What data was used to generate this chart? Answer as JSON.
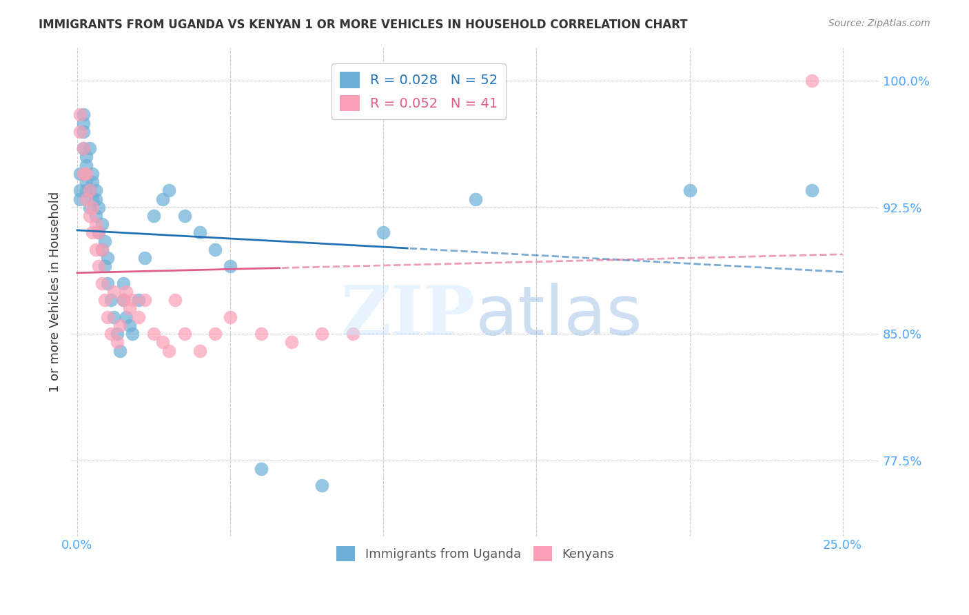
{
  "title": "IMMIGRANTS FROM UGANDA VS KENYAN 1 OR MORE VEHICLES IN HOUSEHOLD CORRELATION CHART",
  "source": "Source: ZipAtlas.com",
  "xlabel_bottom": "",
  "ylabel": "1 or more Vehicles in Household",
  "xlabel_ticks": [
    "0.0%",
    "25.0%"
  ],
  "ylim": [
    0.73,
    1.02
  ],
  "xlim": [
    -0.002,
    0.262
  ],
  "yticks": [
    0.775,
    0.85,
    0.925,
    1.0
  ],
  "ytick_labels": [
    "77.5%",
    "85.0%",
    "92.5%",
    "100.0%"
  ],
  "xticks": [
    0.0,
    0.05,
    0.1,
    0.15,
    0.2,
    0.25
  ],
  "xtick_labels": [
    "0.0%",
    "",
    "",
    "",
    "",
    "25.0%"
  ],
  "blue_color": "#6baed6",
  "pink_color": "#fa9fb5",
  "blue_line_color": "#2171b5",
  "pink_line_color": "#e05c8a",
  "legend_blue_R": "R = 0.028",
  "legend_blue_N": "N = 52",
  "legend_pink_R": "R = 0.052",
  "legend_pink_N": "N = 41",
  "watermark": "ZIPatlas",
  "tick_color": "#4da6ff",
  "grid_color": "#cccccc",
  "blue_x": [
    0.001,
    0.001,
    0.001,
    0.002,
    0.002,
    0.002,
    0.002,
    0.003,
    0.003,
    0.003,
    0.003,
    0.004,
    0.004,
    0.004,
    0.005,
    0.005,
    0.005,
    0.006,
    0.006,
    0.006,
    0.007,
    0.007,
    0.008,
    0.008,
    0.009,
    0.009,
    0.01,
    0.01,
    0.011,
    0.012,
    0.013,
    0.014,
    0.015,
    0.015,
    0.016,
    0.017,
    0.018,
    0.02,
    0.022,
    0.025,
    0.028,
    0.03,
    0.035,
    0.04,
    0.045,
    0.05,
    0.06,
    0.08,
    0.1,
    0.13,
    0.2,
    0.24
  ],
  "blue_y": [
    0.935,
    0.93,
    0.945,
    0.96,
    0.97,
    0.975,
    0.98,
    0.935,
    0.94,
    0.95,
    0.955,
    0.925,
    0.935,
    0.96,
    0.93,
    0.94,
    0.945,
    0.92,
    0.93,
    0.935,
    0.91,
    0.925,
    0.9,
    0.915,
    0.89,
    0.905,
    0.88,
    0.895,
    0.87,
    0.86,
    0.85,
    0.84,
    0.87,
    0.88,
    0.86,
    0.855,
    0.85,
    0.87,
    0.895,
    0.92,
    0.93,
    0.935,
    0.92,
    0.91,
    0.9,
    0.89,
    0.77,
    0.76,
    0.91,
    0.93,
    0.935,
    0.935
  ],
  "pink_x": [
    0.001,
    0.001,
    0.002,
    0.002,
    0.003,
    0.003,
    0.004,
    0.004,
    0.005,
    0.005,
    0.006,
    0.006,
    0.007,
    0.007,
    0.008,
    0.008,
    0.009,
    0.01,
    0.011,
    0.012,
    0.013,
    0.014,
    0.015,
    0.016,
    0.017,
    0.018,
    0.02,
    0.022,
    0.025,
    0.028,
    0.03,
    0.032,
    0.035,
    0.04,
    0.045,
    0.05,
    0.06,
    0.07,
    0.08,
    0.09,
    0.24
  ],
  "pink_y": [
    0.97,
    0.98,
    0.945,
    0.96,
    0.93,
    0.945,
    0.92,
    0.935,
    0.91,
    0.925,
    0.9,
    0.915,
    0.89,
    0.91,
    0.88,
    0.9,
    0.87,
    0.86,
    0.85,
    0.875,
    0.845,
    0.855,
    0.87,
    0.875,
    0.865,
    0.87,
    0.86,
    0.87,
    0.85,
    0.845,
    0.84,
    0.87,
    0.85,
    0.84,
    0.85,
    0.86,
    0.85,
    0.845,
    0.85,
    0.85,
    1.0
  ]
}
